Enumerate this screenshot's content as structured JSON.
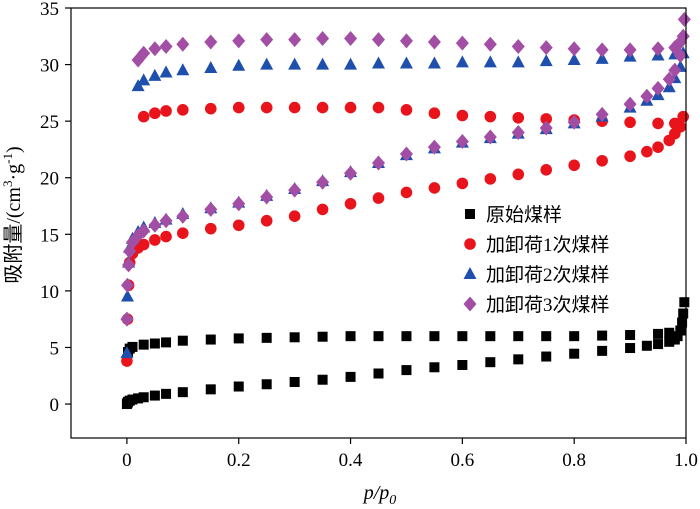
{
  "chart_data": {
    "type": "scatter",
    "xlabel_main": "p/p",
    "xlabel_sub": "0",
    "ylabel": "吸附量/(cm",
    "ylabel_sup1": "3",
    "ylabel_mid": "·g",
    "ylabel_sup2": "-1",
    "ylabel_end": ")",
    "xlim": [
      -0.1,
      1.0
    ],
    "ylim": [
      -3,
      35
    ],
    "x_ticks": [
      0,
      0.2,
      0.4,
      0.6,
      0.8,
      1.0
    ],
    "x_tick_labels": [
      "0",
      "0.2",
      "0.4",
      "0.6",
      "0.8",
      "1.0"
    ],
    "y_ticks": [
      0,
      5,
      10,
      15,
      20,
      25,
      30,
      35
    ],
    "y_tick_labels": [
      "0",
      "5",
      "10",
      "15",
      "20",
      "25",
      "30",
      "35"
    ],
    "grid": false,
    "legend_position": "center-right",
    "series": [
      {
        "name": "原始煤样",
        "marker": "square",
        "color": "#000000",
        "adsorption": {
          "x": [
            0.0,
            0.001,
            0.002,
            0.005,
            0.01,
            0.02,
            0.03,
            0.05,
            0.07,
            0.1,
            0.15,
            0.2,
            0.25,
            0.3,
            0.35,
            0.4,
            0.45,
            0.5,
            0.55,
            0.6,
            0.65,
            0.7,
            0.75,
            0.8,
            0.85,
            0.9,
            0.93,
            0.95,
            0.97,
            0.98,
            0.985,
            0.99,
            0.993,
            0.995,
            0.997
          ],
          "y": [
            0.0,
            0.1,
            0.2,
            0.3,
            0.4,
            0.5,
            0.6,
            0.75,
            0.9,
            1.05,
            1.3,
            1.55,
            1.75,
            1.95,
            2.15,
            2.4,
            2.7,
            3.0,
            3.25,
            3.45,
            3.7,
            3.95,
            4.2,
            4.45,
            4.7,
            4.95,
            5.15,
            5.3,
            5.5,
            5.7,
            6.0,
            6.5,
            7.2,
            8.0,
            9.0
          ]
        },
        "desorption": {
          "x": [
            0.99,
            0.97,
            0.95,
            0.9,
            0.85,
            0.8,
            0.75,
            0.7,
            0.65,
            0.6,
            0.55,
            0.5,
            0.45,
            0.4,
            0.35,
            0.3,
            0.25,
            0.2,
            0.15,
            0.1,
            0.07,
            0.05,
            0.03,
            0.01,
            0.005,
            0.002
          ],
          "y": [
            6.5,
            6.3,
            6.2,
            6.1,
            6.05,
            6.0,
            6.0,
            6.0,
            6.0,
            6.0,
            6.0,
            6.0,
            6.0,
            6.0,
            5.95,
            5.9,
            5.85,
            5.8,
            5.7,
            5.6,
            5.45,
            5.35,
            5.25,
            5.05,
            4.9,
            4.6
          ]
        }
      },
      {
        "name": "加卸荷1次煤样",
        "marker": "circle",
        "color": "#e8131b",
        "adsorption": {
          "x": [
            0.0,
            0.001,
            0.003,
            0.005,
            0.01,
            0.02,
            0.03,
            0.05,
            0.07,
            0.1,
            0.15,
            0.2,
            0.25,
            0.3,
            0.35,
            0.4,
            0.45,
            0.5,
            0.55,
            0.6,
            0.65,
            0.7,
            0.75,
            0.8,
            0.85,
            0.9,
            0.93,
            0.95,
            0.97,
            0.98,
            0.99,
            0.995
          ],
          "y": [
            3.8,
            7.5,
            10.5,
            12.5,
            13.3,
            13.8,
            14.1,
            14.5,
            14.8,
            15.1,
            15.5,
            15.8,
            16.2,
            16.6,
            17.2,
            17.7,
            18.2,
            18.7,
            19.1,
            19.5,
            19.9,
            20.3,
            20.7,
            21.1,
            21.5,
            21.9,
            22.3,
            22.7,
            23.3,
            23.9,
            24.5,
            25.4
          ]
        },
        "desorption": {
          "x": [
            0.98,
            0.95,
            0.9,
            0.85,
            0.8,
            0.75,
            0.7,
            0.65,
            0.6,
            0.55,
            0.5,
            0.45,
            0.4,
            0.35,
            0.3,
            0.25,
            0.2,
            0.15,
            0.1,
            0.07,
            0.05,
            0.03
          ],
          "y": [
            24.8,
            24.8,
            24.9,
            25.0,
            25.1,
            25.2,
            25.3,
            25.4,
            25.5,
            25.7,
            26.0,
            26.2,
            26.2,
            26.2,
            26.2,
            26.2,
            26.2,
            26.1,
            26.0,
            25.9,
            25.7,
            25.4
          ]
        }
      },
      {
        "name": "加卸荷2次煤样",
        "marker": "triangle",
        "color": "#1f4fad",
        "adsorption": {
          "x": [
            0.0,
            0.001,
            0.003,
            0.005,
            0.01,
            0.02,
            0.03,
            0.05,
            0.07,
            0.1,
            0.15,
            0.2,
            0.25,
            0.3,
            0.35,
            0.4,
            0.45,
            0.5,
            0.55,
            0.6,
            0.65,
            0.7,
            0.75,
            0.8,
            0.85,
            0.9,
            0.93,
            0.95,
            0.97,
            0.98,
            0.99,
            0.995
          ],
          "y": [
            4.5,
            9.5,
            12.5,
            13.8,
            14.6,
            15.2,
            15.6,
            16.0,
            16.3,
            16.8,
            17.3,
            17.8,
            18.4,
            19.0,
            19.7,
            20.5,
            21.3,
            22.0,
            22.6,
            23.1,
            23.5,
            23.9,
            24.3,
            24.8,
            25.4,
            26.2,
            26.8,
            27.3,
            28.0,
            28.8,
            29.8,
            31.0
          ]
        },
        "desorption": {
          "x": [
            0.98,
            0.95,
            0.9,
            0.85,
            0.8,
            0.75,
            0.7,
            0.65,
            0.6,
            0.55,
            0.5,
            0.45,
            0.4,
            0.35,
            0.3,
            0.25,
            0.2,
            0.15,
            0.1,
            0.07,
            0.05,
            0.03,
            0.02
          ],
          "y": [
            30.9,
            30.8,
            30.7,
            30.5,
            30.4,
            30.3,
            30.2,
            30.2,
            30.2,
            30.1,
            30.1,
            30.1,
            30.0,
            30.0,
            30.0,
            30.0,
            29.9,
            29.7,
            29.5,
            29.3,
            29.0,
            28.6,
            28.1
          ]
        }
      },
      {
        "name": "加卸荷3次煤样",
        "marker": "diamond",
        "color": "#a24ea4",
        "adsorption": {
          "x": [
            0.0,
            0.001,
            0.003,
            0.005,
            0.01,
            0.02,
            0.03,
            0.05,
            0.07,
            0.1,
            0.15,
            0.2,
            0.25,
            0.3,
            0.35,
            0.4,
            0.45,
            0.5,
            0.55,
            0.6,
            0.65,
            0.7,
            0.75,
            0.8,
            0.85,
            0.9,
            0.93,
            0.95,
            0.97,
            0.98,
            0.99,
            0.995
          ],
          "y": [
            7.5,
            10.5,
            12.3,
            13.5,
            14.3,
            14.9,
            15.3,
            15.8,
            16.2,
            16.6,
            17.2,
            17.7,
            18.3,
            18.9,
            19.6,
            20.4,
            21.3,
            22.1,
            22.7,
            23.2,
            23.6,
            24.0,
            24.4,
            24.9,
            25.6,
            26.5,
            27.2,
            27.9,
            28.7,
            29.5,
            30.8,
            32.5
          ]
        },
        "desorption": {
          "x": [
            0.997,
            0.99,
            0.98,
            0.95,
            0.9,
            0.85,
            0.8,
            0.75,
            0.7,
            0.65,
            0.6,
            0.55,
            0.5,
            0.45,
            0.4,
            0.35,
            0.3,
            0.25,
            0.2,
            0.15,
            0.1,
            0.07,
            0.05,
            0.03,
            0.02
          ],
          "y": [
            34.0,
            32.0,
            31.5,
            31.4,
            31.3,
            31.3,
            31.4,
            31.5,
            31.6,
            31.8,
            31.9,
            32.0,
            32.1,
            32.2,
            32.3,
            32.3,
            32.2,
            32.2,
            32.1,
            32.0,
            31.8,
            31.6,
            31.4,
            31.0,
            30.4
          ]
        }
      }
    ]
  }
}
